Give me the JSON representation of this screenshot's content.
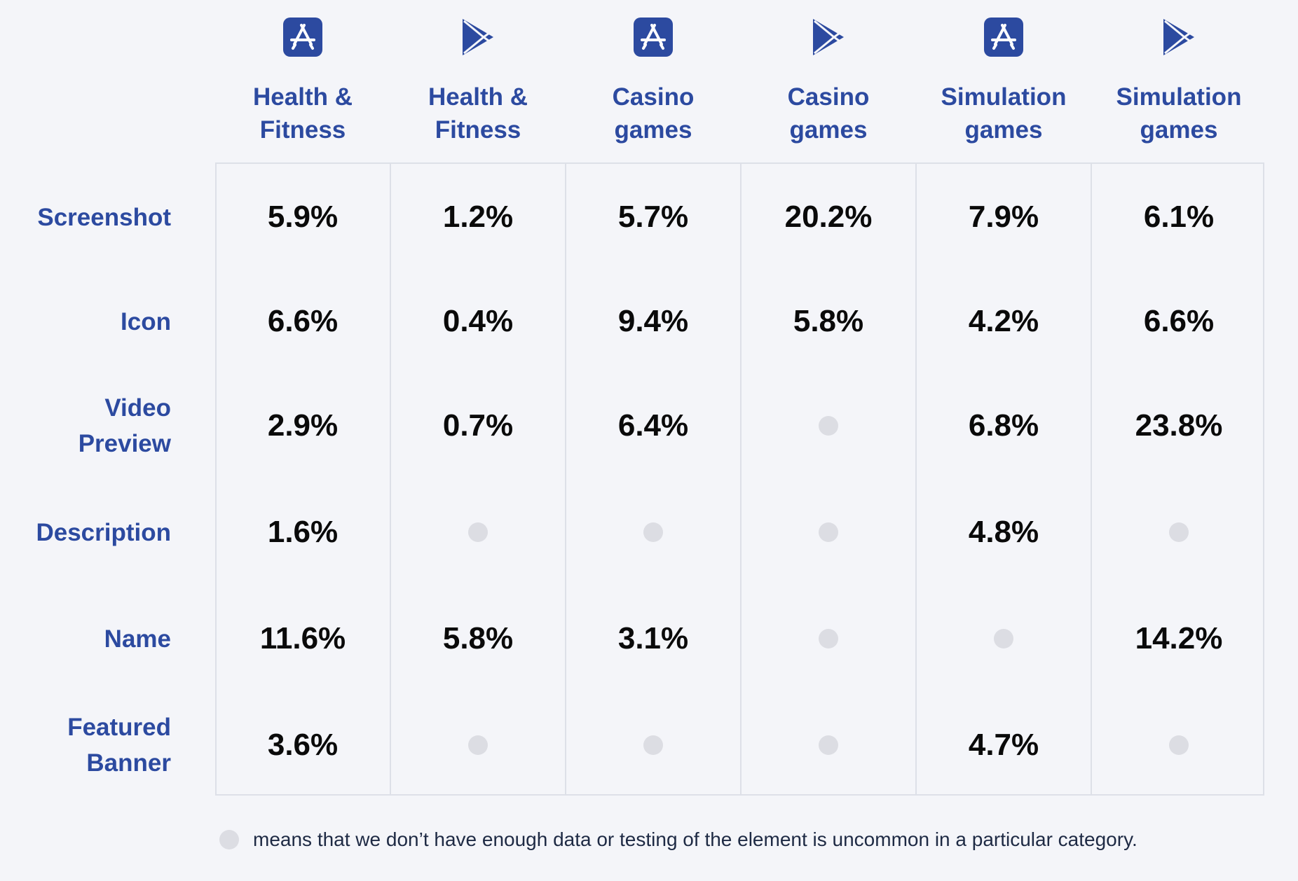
{
  "chart_data": {
    "type": "table",
    "columns": [
      {
        "store": "app-store-icon",
        "title": "Health &\nFitness"
      },
      {
        "store": "google-play-icon",
        "title": "Health &\nFitness"
      },
      {
        "store": "app-store-icon",
        "title": "Casino\ngames"
      },
      {
        "store": "google-play-icon",
        "title": "Casino\ngames"
      },
      {
        "store": "app-store-icon",
        "title": "Simulation\ngames"
      },
      {
        "store": "google-play-icon",
        "title": "Simulation\ngames"
      }
    ],
    "rows": [
      {
        "label": "Screenshot",
        "values": [
          "5.9%",
          "1.2%",
          "5.7%",
          "20.2%",
          "7.9%",
          "6.1%"
        ]
      },
      {
        "label": "Icon",
        "values": [
          "6.6%",
          "0.4%",
          "9.4%",
          "5.8%",
          "4.2%",
          "6.6%"
        ]
      },
      {
        "label": "Video\nPreview",
        "values": [
          "2.9%",
          "0.7%",
          "6.4%",
          null,
          "6.8%",
          "23.8%"
        ]
      },
      {
        "label": "Description",
        "values": [
          "1.6%",
          null,
          null,
          null,
          "4.8%",
          null
        ]
      },
      {
        "label": "Name",
        "values": [
          "11.6%",
          "5.8%",
          "3.1%",
          null,
          null,
          "14.2%"
        ]
      },
      {
        "label": "Featured\nBanner",
        "values": [
          "3.6%",
          null,
          null,
          null,
          "4.7%",
          null
        ]
      }
    ]
  },
  "legend": {
    "icon": "gray-dot-icon",
    "text": "means that we don’t have enough data or testing of the element is uncommon in a particular category."
  },
  "colors": {
    "accent": "#2c4aa0",
    "icon_bg": "#2c4aa0",
    "value_text": "#0a0a0a",
    "na_dot": "#dcdde3",
    "background": "#f4f5f9",
    "grid": "#dde0e8"
  }
}
